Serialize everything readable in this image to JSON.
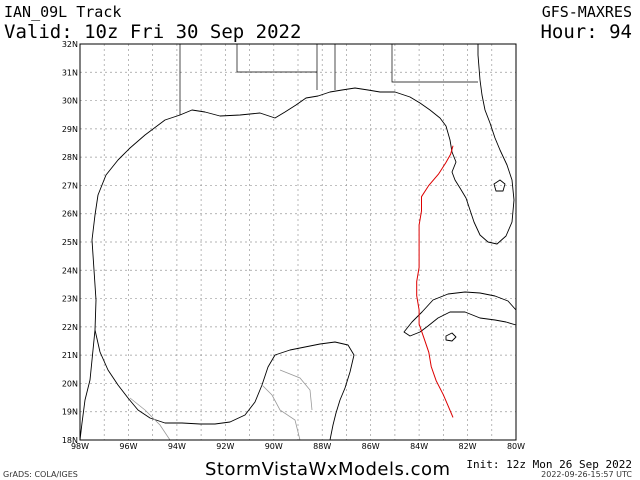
{
  "header": {
    "storm": "IAN_09L Track",
    "valid": "Valid: 10z Fri 30 Sep 2022",
    "model": "GFS-MAXRES",
    "hour": "Hour: 94"
  },
  "footer": {
    "site": "StormVistaWxModels.com",
    "init": "Init: 12z Mon 26 Sep 2022",
    "timestamp": "2022-09-26-15:57 UTC",
    "credit": "GrADS: COLA/IGES"
  },
  "map": {
    "lon_range": [
      -98,
      -80
    ],
    "lat_range": [
      18,
      32
    ],
    "lat_ticks": [
      "32N",
      "31N",
      "30N",
      "29N",
      "28N",
      "27N",
      "26N",
      "25N",
      "24N",
      "23N",
      "22N",
      "21N",
      "20N",
      "19N",
      "18N"
    ],
    "lon_ticks": [
      "98W",
      "96W",
      "94W",
      "92W",
      "90W",
      "88W",
      "86W",
      "84W",
      "82W",
      "80W"
    ],
    "track_color": "#dd0000",
    "track": [
      [
        -82.6,
        18.8
      ],
      [
        -82.8,
        19.2
      ],
      [
        -83.0,
        19.6
      ],
      [
        -83.3,
        20.1
      ],
      [
        -83.5,
        20.6
      ],
      [
        -83.6,
        21.1
      ],
      [
        -83.8,
        21.6
      ],
      [
        -84.0,
        22.1
      ],
      [
        -84.0,
        22.6
      ],
      [
        -84.1,
        23.1
      ],
      [
        -84.1,
        23.6
      ],
      [
        -84.0,
        24.1
      ],
      [
        -84.0,
        24.6
      ],
      [
        -84.0,
        25.1
      ],
      [
        -84.0,
        25.6
      ],
      [
        -83.9,
        26.1
      ],
      [
        -83.9,
        26.6
      ],
      [
        -83.6,
        27.0
      ],
      [
        -83.2,
        27.4
      ],
      [
        -82.9,
        27.8
      ],
      [
        -82.7,
        28.1
      ],
      [
        -82.6,
        28.4
      ]
    ]
  }
}
